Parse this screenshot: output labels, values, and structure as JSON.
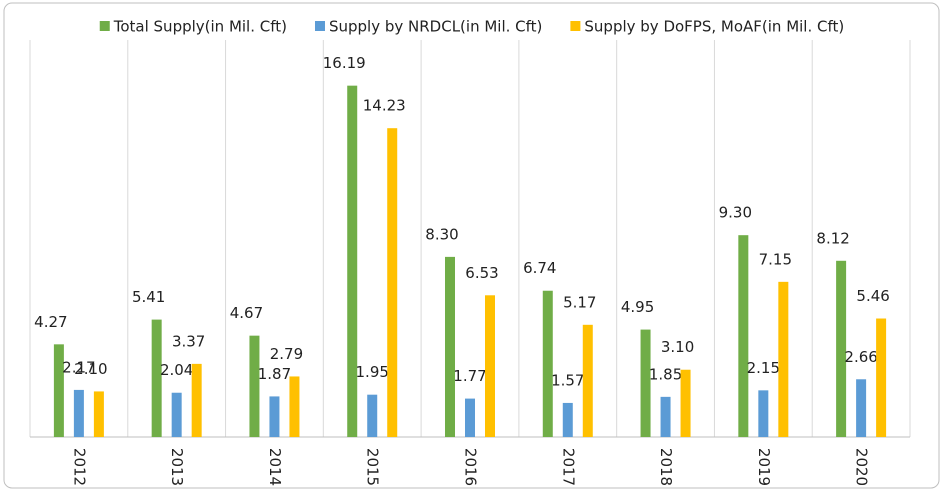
{
  "chart_data": {
    "type": "bar",
    "categories": [
      "2012",
      "2013",
      "2014",
      "2015",
      "2016",
      "2017",
      "2018",
      "2019",
      "2020"
    ],
    "series": [
      {
        "name": "Total Supply(in Mil. Cft)",
        "color": "#70ad47",
        "values": [
          4.27,
          5.41,
          4.67,
          16.19,
          8.3,
          6.74,
          4.95,
          9.3,
          8.12
        ],
        "value_labels": [
          "4.27",
          "5.41",
          "4.67",
          "16.19",
          "8.30",
          "6.74",
          "4.95",
          "9.30",
          "8.12"
        ]
      },
      {
        "name": "Supply by NRDCL(in Mil. Cft)",
        "color": "#5b9bd5",
        "values": [
          2.17,
          2.04,
          1.87,
          1.95,
          1.77,
          1.57,
          1.85,
          2.15,
          2.66
        ],
        "value_labels": [
          "2.17",
          "2.04",
          "1.87",
          "1.95",
          "1.77",
          "1.57",
          "1.85",
          "2.15",
          "2.66"
        ]
      },
      {
        "name": "Supply by DoFPS, MoAF(in Mil. Cft)",
        "color": "#ffc000",
        "values": [
          2.1,
          3.37,
          2.79,
          14.23,
          6.53,
          5.17,
          3.1,
          7.15,
          5.46
        ],
        "value_labels": [
          "2.10",
          "3.37",
          "2.79",
          "14.23",
          "6.53",
          "5.17",
          "3.10",
          "7.15",
          "5.46"
        ]
      }
    ],
    "ylim": [
      0,
      19.4
    ]
  }
}
